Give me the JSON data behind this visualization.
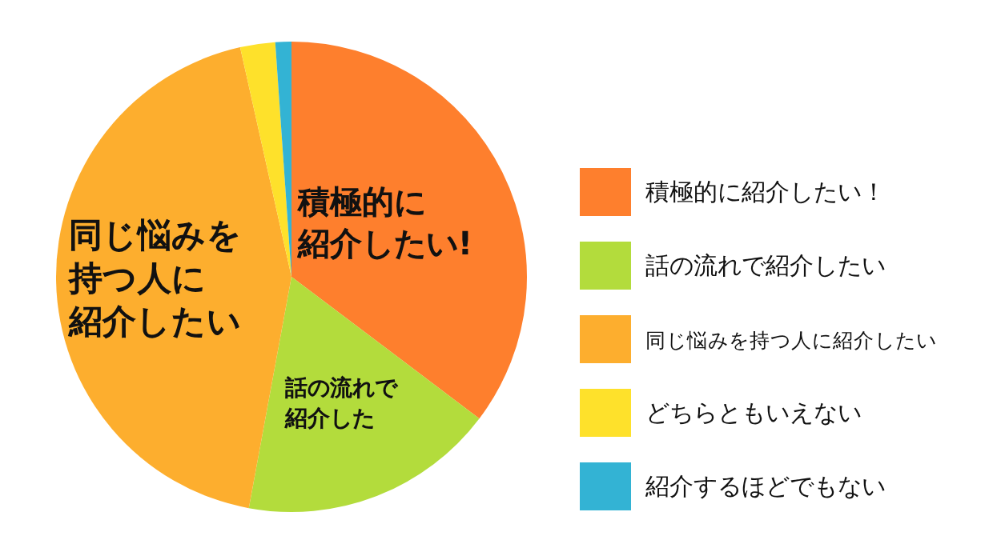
{
  "chart_data": {
    "type": "pie",
    "categories": [
      "積極的に紹介したい！",
      "話の流れで紹介したい",
      "同じ悩みを持つ人に紹介したい",
      "どちらともいえない",
      "紹介するほどでもない"
    ],
    "values": [
      35.3,
      17.6,
      43.6,
      2.4,
      1.1
    ],
    "colors": [
      "#fe7f2d",
      "#b3dc3c",
      "#fdae2e",
      "#fee12b",
      "#33b3d4"
    ],
    "legend": "right",
    "annotations": [
      "積極的に紹介したい!",
      "話の流れで紹介した",
      "同じ悩みを持つ人に紹介したい"
    ]
  }
}
